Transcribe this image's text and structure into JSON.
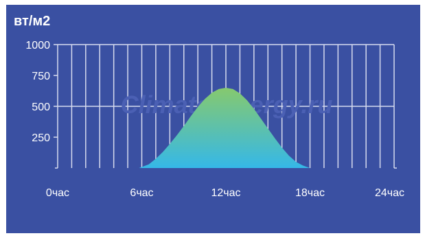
{
  "chart_data": {
    "type": "area",
    "title": "вт/м2",
    "xlabel": "",
    "ylabel": "вт/м2",
    "x_ticks": [
      "0час",
      "6час",
      "12час",
      "18час",
      "24час"
    ],
    "y_ticks": [
      "1000",
      "750",
      "500",
      "250"
    ],
    "xlim": [
      0,
      24
    ],
    "ylim": [
      0,
      1000
    ],
    "grid": true,
    "watermark": "Climate-Energy.ru",
    "series": [
      {
        "x": [
          5.8,
          6.5,
          7,
          7.5,
          8,
          8.5,
          9,
          9.5,
          10,
          10.5,
          11,
          11.5,
          12,
          12.5,
          13,
          13.5,
          14,
          14.5,
          15,
          15.5,
          16,
          16.5,
          17,
          17.5,
          18
        ],
        "values": [
          0,
          30,
          75,
          130,
          195,
          265,
          340,
          420,
          495,
          560,
          610,
          640,
          650,
          640,
          605,
          550,
          480,
          400,
          320,
          240,
          165,
          100,
          50,
          20,
          0
        ]
      }
    ],
    "colors": {
      "panel_bg": "#3a50a2",
      "grid": "#d8dcef",
      "area_top": "#86c96e",
      "area_bottom": "#35b8e8",
      "watermark": "#4b60b4"
    }
  }
}
